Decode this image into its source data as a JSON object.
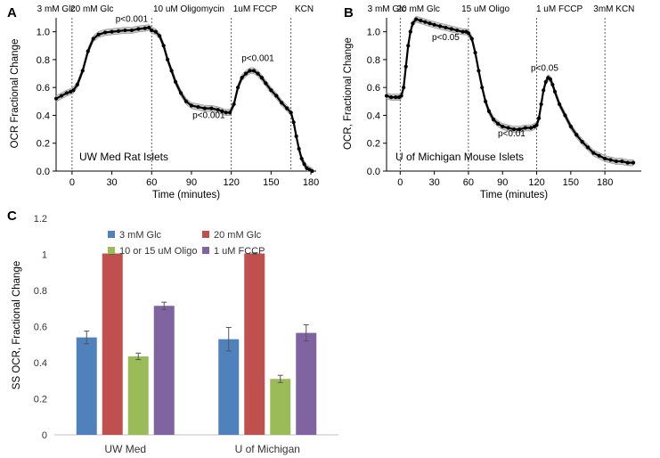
{
  "chart_data": [
    {
      "panel": "A",
      "type": "line",
      "xlabel": "Time (minutes)",
      "ylabel": "OCR Fractional Change",
      "xlim": [
        -12,
        184
      ],
      "ylim": [
        0,
        1.1
      ],
      "xticks": [
        0,
        30,
        60,
        90,
        120,
        150,
        180
      ],
      "yticks": [
        0,
        0.2,
        0.4,
        0.6,
        0.8,
        1.0
      ],
      "inner_label": "UW Med Rat Islets",
      "events": [
        {
          "x": 0,
          "label": "3 mM Glc",
          "label_x": -12
        },
        {
          "x": 0,
          "label": "20 mM Glc",
          "label_x": 15
        },
        {
          "x": 60,
          "label": "10 uM Oligomycin",
          "label_x": 88
        },
        {
          "x": 120,
          "label": "1uM FCCP",
          "label_x": 138
        },
        {
          "x": 165,
          "label": "KCN",
          "label_x": 175
        }
      ],
      "pvalues": [
        {
          "text": "p<0.001",
          "x": 45,
          "y": 1.07
        },
        {
          "text": "p<0.001",
          "x": 103,
          "y": 0.38
        },
        {
          "text": "p<0.001",
          "x": 140,
          "y": 0.79
        }
      ],
      "x": [
        -12,
        -8,
        -4,
        -1,
        1,
        4,
        8,
        12,
        16,
        20,
        25,
        30,
        35,
        40,
        45,
        50,
        55,
        58,
        60,
        63,
        66,
        69,
        72,
        75,
        78,
        82,
        86,
        90,
        95,
        100,
        105,
        110,
        113,
        116,
        119,
        122,
        125,
        128,
        131,
        134,
        137,
        140,
        143,
        146,
        150,
        154,
        158,
        162,
        165,
        167,
        169,
        171,
        173,
        175,
        177,
        179,
        181
      ],
      "y": [
        0.52,
        0.54,
        0.56,
        0.57,
        0.58,
        0.62,
        0.72,
        0.86,
        0.95,
        0.98,
        0.995,
        1.0,
        1.005,
        1.01,
        1.01,
        1.02,
        1.025,
        1.03,
        1.01,
        1.0,
        0.97,
        0.9,
        0.8,
        0.72,
        0.64,
        0.56,
        0.5,
        0.47,
        0.46,
        0.45,
        0.45,
        0.44,
        0.43,
        0.42,
        0.42,
        0.48,
        0.6,
        0.67,
        0.7,
        0.72,
        0.72,
        0.7,
        0.67,
        0.63,
        0.58,
        0.54,
        0.49,
        0.45,
        0.42,
        0.35,
        0.25,
        0.16,
        0.09,
        0.05,
        0.02,
        0.01,
        0.0
      ]
    },
    {
      "panel": "B",
      "type": "line",
      "xlabel": "Time (minutes)",
      "ylabel": "OCR, Fractional Change",
      "xlim": [
        -12,
        212
      ],
      "ylim": [
        0,
        1.1
      ],
      "xticks": [
        0,
        30,
        60,
        90,
        120,
        150,
        180
      ],
      "yticks": [
        0,
        0.2,
        0.4,
        0.6,
        0.8,
        1.0
      ],
      "inner_label": "U of Michigan Mouse Islets",
      "events": [
        {
          "x": 0,
          "label": "3 mM Glc",
          "label_x": -12
        },
        {
          "x": 0,
          "label": "20 mM Glc",
          "label_x": 16
        },
        {
          "x": 60,
          "label": "15 uM Oligo",
          "label_x": 75
        },
        {
          "x": 120,
          "label": "1 uM FCCP",
          "label_x": 140
        },
        {
          "x": 180,
          "label": "3mM KCN",
          "label_x": 188
        }
      ],
      "pvalues": [
        {
          "text": "p<0.05",
          "x": 40,
          "y": 0.94
        },
        {
          "text": "p<0.01",
          "x": 98,
          "y": 0.25
        },
        {
          "text": "p<0.05",
          "x": 127,
          "y": 0.72
        }
      ],
      "x": [
        -12,
        -8,
        -4,
        -1,
        1,
        3,
        5,
        7,
        9,
        11,
        14,
        18,
        22,
        26,
        30,
        35,
        40,
        45,
        50,
        55,
        58,
        60,
        63,
        66,
        69,
        72,
        75,
        78,
        82,
        86,
        90,
        95,
        100,
        105,
        110,
        115,
        118,
        120,
        122,
        124,
        126,
        128,
        130,
        132,
        134,
        136,
        140,
        145,
        150,
        155,
        160,
        165,
        170,
        175,
        180,
        185,
        190,
        195,
        200,
        205
      ],
      "y": [
        0.54,
        0.53,
        0.53,
        0.53,
        0.54,
        0.6,
        0.75,
        0.9,
        1.0,
        1.06,
        1.09,
        1.08,
        1.07,
        1.06,
        1.05,
        1.04,
        1.03,
        1.02,
        1.01,
        1.0,
        1.0,
        0.99,
        0.95,
        0.85,
        0.72,
        0.6,
        0.5,
        0.43,
        0.37,
        0.34,
        0.32,
        0.31,
        0.3,
        0.3,
        0.31,
        0.31,
        0.32,
        0.33,
        0.38,
        0.48,
        0.58,
        0.64,
        0.67,
        0.66,
        0.62,
        0.57,
        0.48,
        0.4,
        0.32,
        0.26,
        0.21,
        0.17,
        0.13,
        0.11,
        0.09,
        0.08,
        0.07,
        0.07,
        0.06,
        0.06
      ]
    },
    {
      "panel": "C",
      "type": "bar",
      "ylabel": "SS OCR, Fractional Change",
      "ylim": [
        0,
        1.2
      ],
      "yticks": [
        0,
        0.2,
        0.4,
        0.6,
        0.8,
        1,
        1.2
      ],
      "categories": [
        "UW Med",
        "U of Michigan"
      ],
      "legend_position": "top",
      "series": [
        {
          "name": "3 mM Glc",
          "color": "#4f81bd",
          "values": [
            0.54,
            0.53
          ],
          "errors": [
            0.035,
            0.065
          ]
        },
        {
          "name": "20 mM Glc",
          "color": "#c0504d",
          "values": [
            1.005,
            1.005
          ],
          "errors": [
            0.004,
            0.004
          ]
        },
        {
          "name": "10 or 15 uM Oligo",
          "color": "#9bbb59",
          "values": [
            0.435,
            0.31
          ],
          "errors": [
            0.018,
            0.02
          ]
        },
        {
          "name": "1 uM FCCP",
          "color": "#8064a2",
          "values": [
            0.715,
            0.565
          ],
          "errors": [
            0.02,
            0.045
          ]
        }
      ]
    }
  ]
}
